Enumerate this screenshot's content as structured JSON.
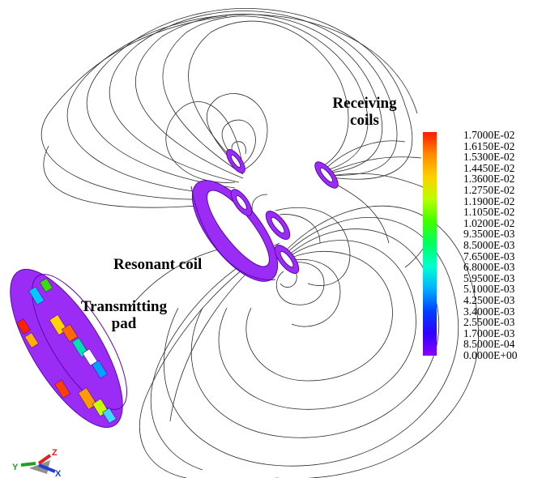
{
  "labels": {
    "receiving_line1": "Receiving",
    "receiving_line2": "coils",
    "resonant": "Resonant coil",
    "transmitting_line1": "Transmitting",
    "transmitting_line2": "pad"
  },
  "legend": {
    "ticks": [
      "1.7000E-02",
      "1.6150E-02",
      "1.5300E-02",
      "1.4450E-02",
      "1.3600E-02",
      "1.2750E-02",
      "1.1900E-02",
      "1.1050E-02",
      "1.0200E-02",
      "9.3500E-03",
      "8.5000E-03",
      "7.6500E-03",
      "6.8000E-03",
      "5.9500E-03",
      "5.1000E-03",
      "4.2500E-03",
      "3.4000E-03",
      "2.5500E-03",
      "1.7000E-03",
      "8.5000E-04",
      "0.0000E+00"
    ]
  },
  "axes": {
    "y": "Y",
    "z": "Z",
    "x": "X"
  },
  "colors": {
    "coil": "#9a2cf5",
    "coil_edge": "#5a0aa8",
    "field_line": "#2a2a2a"
  }
}
